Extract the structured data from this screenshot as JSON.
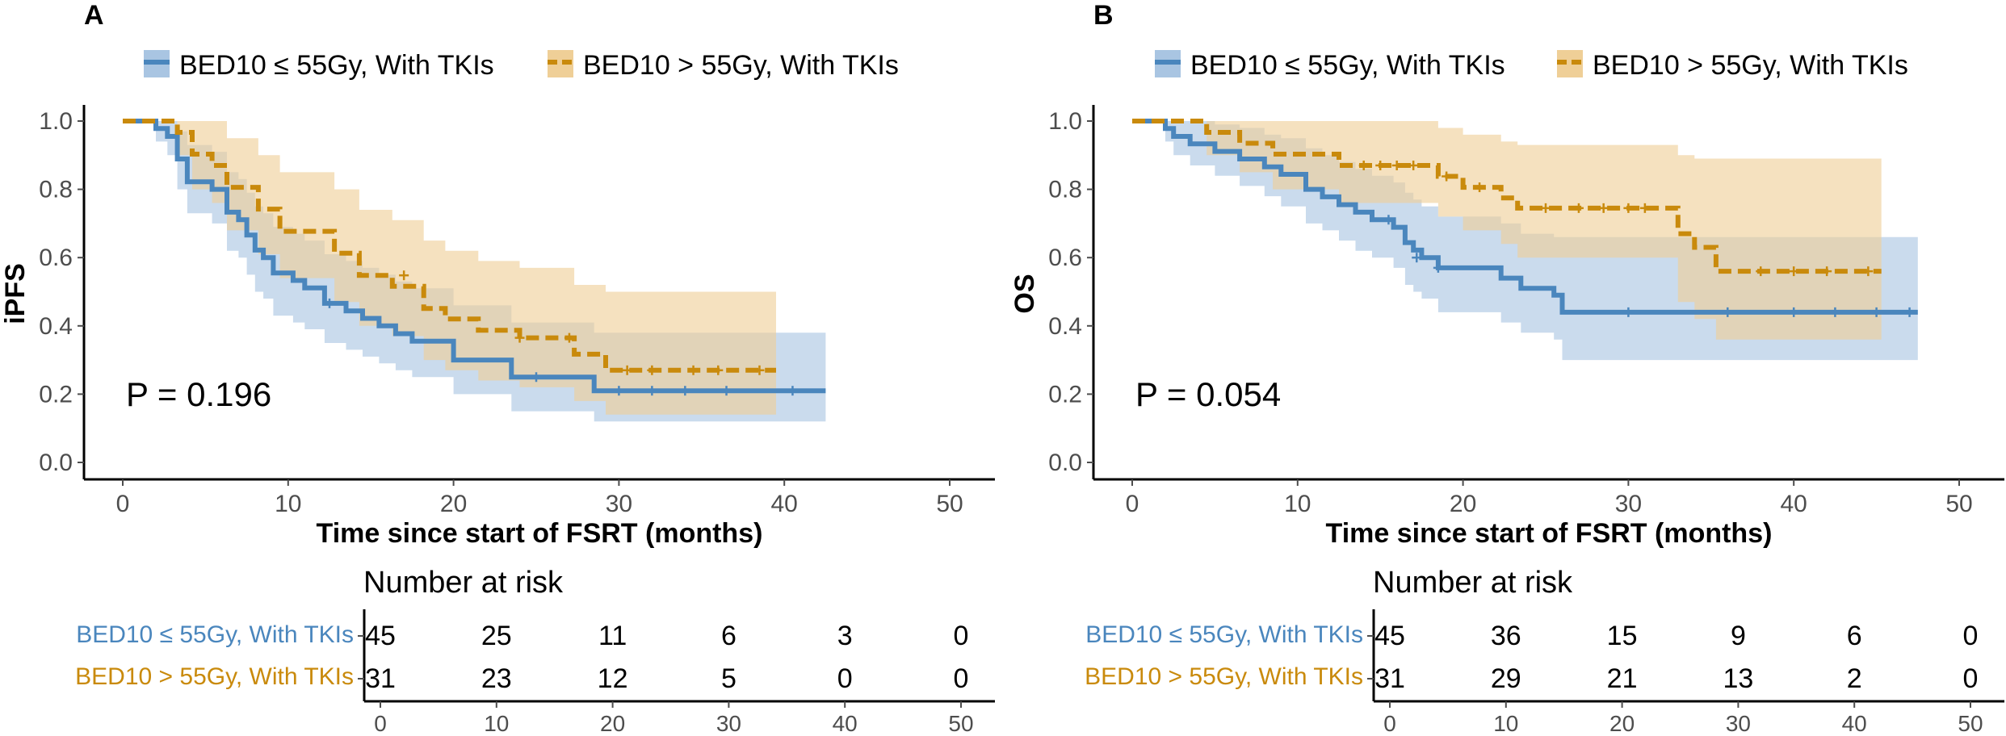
{
  "colors": {
    "group1": "#4a86bd",
    "group2": "#c98a0c",
    "ci1": "#a9c5e2",
    "ci2": "#efcf97",
    "axis": "#000000",
    "tick": "#4d4d4d"
  },
  "legend": {
    "group1": "BED10 ≤ 55Gy, With TKIs",
    "group2": "BED10 > 55Gy, With TKIs"
  },
  "risk_table": {
    "title": "Number at risk",
    "group1_label": "BED10 ≤ 55Gy, With TKIs",
    "group2_label": "BED10 > 55Gy, With TKIs",
    "times": [
      0,
      10,
      20,
      30,
      40,
      50
    ]
  },
  "chart_data": [
    {
      "type": "line",
      "panel": "A",
      "title": "",
      "xlabel": "Time since start of FSRT (months)",
      "ylabel": "iPFS",
      "xlim": [
        0,
        50
      ],
      "ylim": [
        0,
        1
      ],
      "xticks": [
        0,
        10,
        20,
        30,
        40,
        50
      ],
      "yticks": [
        "0.0",
        "0.2",
        "0.4",
        "0.6",
        "0.8",
        "1.0"
      ],
      "p_value": "P = 0.196",
      "series": [
        {
          "name": "BED10 ≤ 55Gy, With TKIs",
          "x": [
            0,
            2,
            2.7,
            3.3,
            3.9,
            5.4,
            6.3,
            7,
            7.5,
            8,
            8.5,
            9.1,
            10.3,
            11,
            12.2,
            13.5,
            14.5,
            15.5,
            16.5,
            17.5,
            20,
            23.5,
            28.5,
            42.5
          ],
          "y": [
            1,
            0.978,
            0.955,
            0.889,
            0.822,
            0.8,
            0.733,
            0.711,
            0.666,
            0.622,
            0.6,
            0.555,
            0.533,
            0.511,
            0.466,
            0.444,
            0.422,
            0.4,
            0.377,
            0.355,
            0.3,
            0.25,
            0.21,
            0.21
          ],
          "ci_lower": [
            1,
            0.94,
            0.9,
            0.8,
            0.73,
            0.7,
            0.62,
            0.6,
            0.55,
            0.5,
            0.48,
            0.43,
            0.41,
            0.39,
            0.35,
            0.33,
            0.31,
            0.29,
            0.27,
            0.25,
            0.2,
            0.15,
            0.12,
            0.12
          ],
          "ci_upper": [
            1,
            1,
            1,
            0.97,
            0.93,
            0.91,
            0.85,
            0.83,
            0.79,
            0.75,
            0.73,
            0.69,
            0.67,
            0.65,
            0.61,
            0.59,
            0.57,
            0.55,
            0.53,
            0.51,
            0.46,
            0.41,
            0.38,
            0.38
          ],
          "censor_x": [
            12.5,
            25,
            30,
            32,
            34,
            36.5,
            40.5
          ],
          "censor_y": [
            0.466,
            0.25,
            0.21,
            0.21,
            0.21,
            0.21,
            0.21
          ],
          "at_risk": [
            "45",
            "25",
            "11",
            "6",
            "3",
            "0"
          ]
        },
        {
          "name": "BED10 > 55Gy, With TKIs",
          "x": [
            0,
            3.3,
            4.2,
            5.4,
            6.3,
            8.2,
            9.5,
            12.8,
            14.3,
            16.3,
            18.2,
            19.5,
            21.5,
            24,
            27.3,
            29.2,
            39.5
          ],
          "y": [
            1,
            0.967,
            0.903,
            0.87,
            0.806,
            0.742,
            0.677,
            0.613,
            0.548,
            0.516,
            0.451,
            0.42,
            0.387,
            0.365,
            0.317,
            0.27,
            0.27
          ],
          "ci_lower": [
            1,
            0.9,
            0.8,
            0.76,
            0.68,
            0.61,
            0.54,
            0.47,
            0.4,
            0.37,
            0.3,
            0.27,
            0.24,
            0.22,
            0.18,
            0.14,
            0.14
          ],
          "ci_upper": [
            1,
            1,
            1,
            1,
            0.95,
            0.9,
            0.85,
            0.8,
            0.74,
            0.71,
            0.65,
            0.62,
            0.59,
            0.57,
            0.52,
            0.5,
            0.5
          ],
          "censor_x": [
            17,
            24,
            27,
            30.5,
            32,
            34.5,
            36,
            38.5
          ],
          "censor_y": [
            0.548,
            0.365,
            0.365,
            0.27,
            0.27,
            0.27,
            0.27,
            0.27
          ],
          "at_risk": [
            "31",
            "23",
            "12",
            "5",
            "0",
            "0"
          ]
        }
      ]
    },
    {
      "type": "line",
      "panel": "B",
      "title": "",
      "xlabel": "Time since start of FSRT (months)",
      "ylabel": "OS",
      "xlim": [
        0,
        50
      ],
      "ylim": [
        0,
        1
      ],
      "xticks": [
        0,
        10,
        20,
        30,
        40,
        50
      ],
      "yticks": [
        "0.0",
        "0.2",
        "0.4",
        "0.6",
        "0.8",
        "1.0"
      ],
      "p_value": "P = 0.054",
      "series": [
        {
          "name": "BED10 ≤ 55Gy, With TKIs",
          "x": [
            0,
            2,
            2.5,
            3.5,
            5,
            6.5,
            8,
            9,
            10.5,
            11.5,
            12.5,
            13.5,
            14.5,
            15.8,
            16.5,
            17,
            17.5,
            18.5,
            22.3,
            23.5,
            25.5,
            26,
            47.5
          ],
          "y": [
            1,
            0.978,
            0.955,
            0.933,
            0.911,
            0.889,
            0.866,
            0.844,
            0.8,
            0.778,
            0.755,
            0.733,
            0.711,
            0.689,
            0.644,
            0.622,
            0.6,
            0.57,
            0.54,
            0.51,
            0.49,
            0.44,
            0.44
          ],
          "ci_lower": [
            1,
            0.94,
            0.9,
            0.87,
            0.84,
            0.81,
            0.78,
            0.75,
            0.7,
            0.68,
            0.65,
            0.62,
            0.6,
            0.57,
            0.52,
            0.5,
            0.48,
            0.44,
            0.41,
            0.38,
            0.36,
            0.3,
            0.3
          ],
          "ci_upper": [
            1,
            1,
            1,
            1,
            0.99,
            0.98,
            0.96,
            0.95,
            0.92,
            0.9,
            0.88,
            0.86,
            0.84,
            0.82,
            0.79,
            0.77,
            0.75,
            0.72,
            0.7,
            0.67,
            0.66,
            0.66,
            0.66
          ],
          "censor_x": [
            15.5,
            17.2,
            18.5,
            30,
            36,
            40,
            42.5,
            45,
            47
          ],
          "censor_y": [
            0.711,
            0.6,
            0.57,
            0.44,
            0.44,
            0.44,
            0.44,
            0.44,
            0.44
          ],
          "at_risk": [
            "45",
            "36",
            "15",
            "9",
            "6",
            "0"
          ]
        },
        {
          "name": "BED10 > 55Gy, With TKIs",
          "x": [
            0,
            4.5,
            6.5,
            8.5,
            12.5,
            14.5,
            18.5,
            20,
            22.3,
            23.3,
            33,
            34,
            35.3,
            45.3
          ],
          "y": [
            1,
            0.967,
            0.935,
            0.903,
            0.87,
            0.87,
            0.838,
            0.806,
            0.775,
            0.745,
            0.67,
            0.63,
            0.56,
            0.56
          ],
          "ci_lower": [
            1,
            0.9,
            0.85,
            0.8,
            0.76,
            0.76,
            0.72,
            0.68,
            0.64,
            0.6,
            0.47,
            0.42,
            0.36,
            0.36
          ],
          "ci_upper": [
            1,
            1,
            1,
            1,
            1,
            1,
            0.98,
            0.96,
            0.94,
            0.93,
            0.9,
            0.89,
            0.89,
            0.89
          ],
          "censor_x": [
            14,
            15,
            16,
            17,
            19,
            21,
            25,
            27,
            28.5,
            30,
            31,
            38,
            40,
            42,
            44.5
          ],
          "censor_y": [
            0.87,
            0.87,
            0.87,
            0.87,
            0.838,
            0.806,
            0.745,
            0.745,
            0.745,
            0.745,
            0.745,
            0.56,
            0.56,
            0.56,
            0.56
          ],
          "at_risk": [
            "31",
            "29",
            "21",
            "13",
            "2",
            "0"
          ]
        }
      ]
    }
  ]
}
